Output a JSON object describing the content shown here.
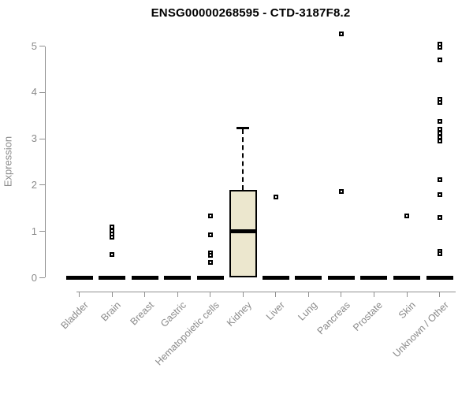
{
  "chart_data": {
    "type": "boxplot",
    "title": "ENSG00000268595 - CTD-3187F8.2",
    "ylabel": "Expression",
    "xlabel": "",
    "ylim": [
      0,
      5
    ],
    "yticks": [
      0,
      1,
      2,
      3,
      4,
      5
    ],
    "grid": false,
    "legend": null,
    "colors": {
      "box_fill": "#ECE7CE",
      "box_border": "#000000",
      "median": "#000000",
      "point": "#000000",
      "axis": "#909090",
      "tick_label": "#8A8A8A",
      "title": "#000000",
      "background": "#FFFFFF"
    },
    "categories": [
      "Bladder",
      "Brain",
      "Breast",
      "Gastric",
      "Hematopoietic cells",
      "Kidney",
      "Liver",
      "Lung",
      "Pancreas",
      "Prostate",
      "Skin",
      "Unknown / Other"
    ],
    "groups": [
      {
        "label": "Bladder",
        "median": 0,
        "q1": 0,
        "q3": 0,
        "whisker_low": 0,
        "whisker_high": 0,
        "outliers": []
      },
      {
        "label": "Brain",
        "median": 0,
        "q1": 0,
        "q3": 0,
        "whisker_low": 0,
        "whisker_high": 0,
        "outliers": [
          1.1,
          1.02,
          0.95,
          0.88,
          0.5
        ]
      },
      {
        "label": "Breast",
        "median": 0,
        "q1": 0,
        "q3": 0,
        "whisker_low": 0,
        "whisker_high": 0,
        "outliers": []
      },
      {
        "label": "Gastric",
        "median": 0,
        "q1": 0,
        "q3": 0,
        "whisker_low": 0,
        "whisker_high": 0,
        "outliers": []
      },
      {
        "label": "Hematopoietic cells",
        "median": 0,
        "q1": 0,
        "q3": 0,
        "whisker_low": 0,
        "whisker_high": 0,
        "outliers": [
          1.33,
          0.92,
          0.53,
          0.49,
          0.33
        ]
      },
      {
        "label": "Kidney",
        "median": 1.0,
        "q1": 0,
        "q3": 1.9,
        "whisker_low": 0,
        "whisker_high": 3.24,
        "outliers": []
      },
      {
        "label": "Liver",
        "median": 0,
        "q1": 0,
        "q3": 0,
        "whisker_low": 0,
        "whisker_high": 0,
        "outliers": [
          1.75
        ]
      },
      {
        "label": "Lung",
        "median": 0,
        "q1": 0,
        "q3": 0,
        "whisker_low": 0,
        "whisker_high": 0,
        "outliers": []
      },
      {
        "label": "Pancreas",
        "median": 0,
        "q1": 0,
        "q3": 0,
        "whisker_low": 0,
        "whisker_high": 0,
        "outliers": [
          5.27,
          1.87
        ]
      },
      {
        "label": "Prostate",
        "median": 0,
        "q1": 0,
        "q3": 0,
        "whisker_low": 0,
        "whisker_high": 0,
        "outliers": []
      },
      {
        "label": "Skin",
        "median": 0,
        "q1": 0,
        "q3": 0,
        "whisker_low": 0,
        "whisker_high": 0,
        "outliers": [
          1.33
        ]
      },
      {
        "label": "Unknown / Other",
        "median": 0,
        "q1": 0,
        "q3": 0,
        "whisker_low": 0,
        "whisker_high": 0,
        "outliers": [
          5.05,
          4.98,
          4.7,
          3.85,
          3.78,
          3.38,
          3.2,
          3.12,
          3.03,
          2.95,
          2.12,
          1.8,
          1.31,
          0.57,
          0.52
        ]
      }
    ]
  }
}
